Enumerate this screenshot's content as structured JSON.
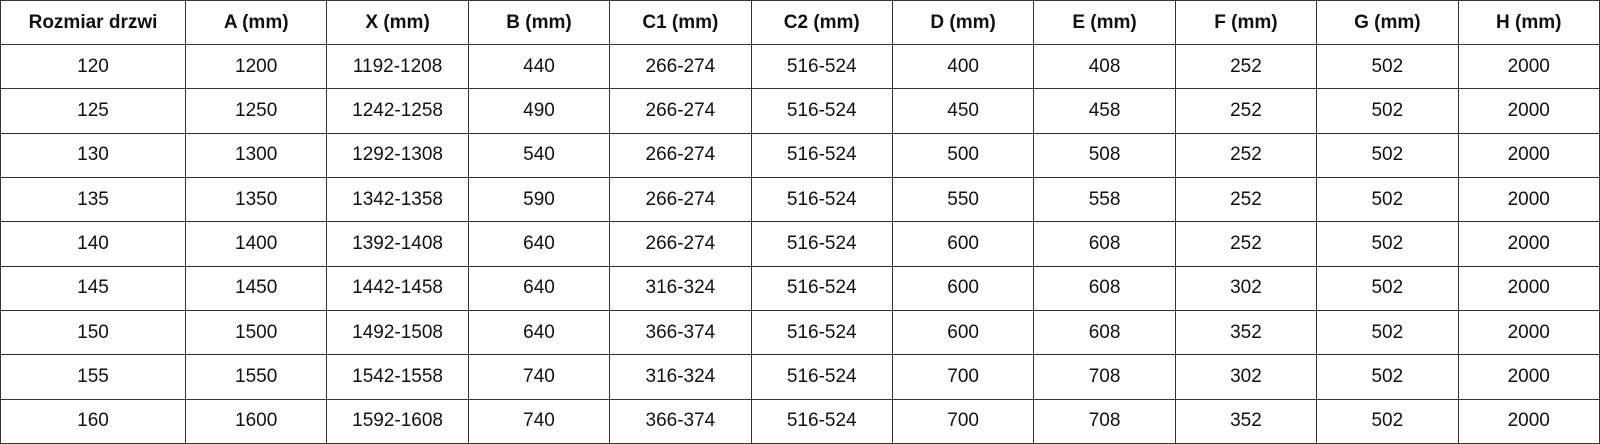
{
  "table": {
    "header": [
      "Rozmiar drzwi",
      "A (mm)",
      "X (mm)",
      "B (mm)",
      "C1 (mm)",
      "C2 (mm)",
      "D (mm)",
      "E (mm)",
      "F (mm)",
      "G (mm)",
      "H (mm)"
    ],
    "rows": [
      [
        "120",
        "1200",
        "1192-1208",
        "440",
        "266-274",
        "516-524",
        "400",
        "408",
        "252",
        "502",
        "2000"
      ],
      [
        "125",
        "1250",
        "1242-1258",
        "490",
        "266-274",
        "516-524",
        "450",
        "458",
        "252",
        "502",
        "2000"
      ],
      [
        "130",
        "1300",
        "1292-1308",
        "540",
        "266-274",
        "516-524",
        "500",
        "508",
        "252",
        "502",
        "2000"
      ],
      [
        "135",
        "1350",
        "1342-1358",
        "590",
        "266-274",
        "516-524",
        "550",
        "558",
        "252",
        "502",
        "2000"
      ],
      [
        "140",
        "1400",
        "1392-1408",
        "640",
        "266-274",
        "516-524",
        "600",
        "608",
        "252",
        "502",
        "2000"
      ],
      [
        "145",
        "1450",
        "1442-1458",
        "640",
        "316-324",
        "516-524",
        "600",
        "608",
        "302",
        "502",
        "2000"
      ],
      [
        "150",
        "1500",
        "1492-1508",
        "640",
        "366-374",
        "516-524",
        "600",
        "608",
        "352",
        "502",
        "2000"
      ],
      [
        "155",
        "1550",
        "1542-1558",
        "740",
        "316-324",
        "516-524",
        "700",
        "708",
        "302",
        "502",
        "2000"
      ],
      [
        "160",
        "1600",
        "1592-1608",
        "740",
        "366-374",
        "516-524",
        "700",
        "708",
        "352",
        "502",
        "2000"
      ]
    ]
  }
}
